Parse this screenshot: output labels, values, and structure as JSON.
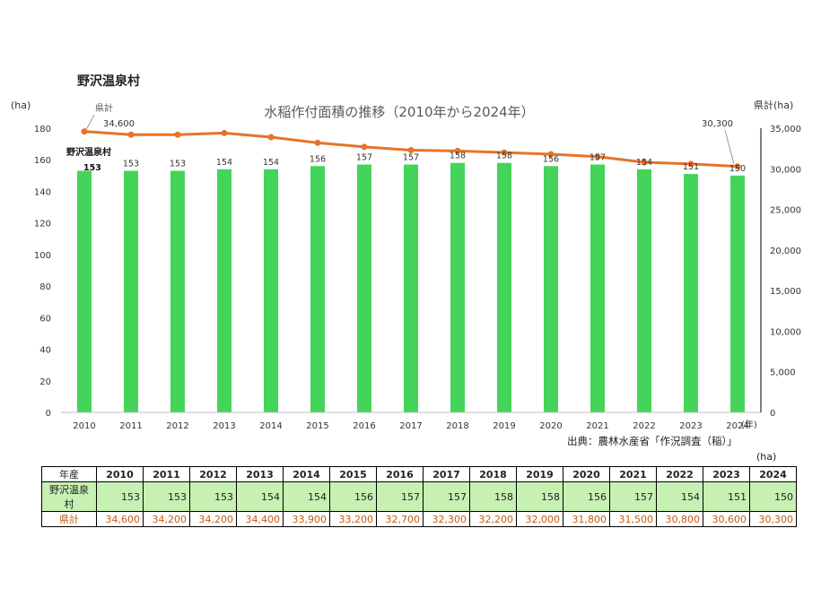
{
  "village_title": "野沢温泉村",
  "chart_data": {
    "type": "bar+line",
    "title": "水稲作付面積の推移（2010年から2024年）",
    "left_axis_unit": "(ha)",
    "right_axis_unit": "県計(ha)",
    "x_unit": "(年)",
    "categories": [
      "2010",
      "2011",
      "2012",
      "2013",
      "2014",
      "2015",
      "2016",
      "2017",
      "2018",
      "2019",
      "2020",
      "2021",
      "2022",
      "2023",
      "2024"
    ],
    "left_ylim": [
      0,
      180
    ],
    "left_ticks": [
      "0",
      "20",
      "40",
      "60",
      "80",
      "100",
      "120",
      "140",
      "160",
      "180"
    ],
    "right_ylim": [
      0,
      35000
    ],
    "right_ticks": [
      "0",
      "5,000",
      "10,000",
      "15,000",
      "20,000",
      "25,000",
      "30,000",
      "35,000"
    ],
    "series": [
      {
        "name": "野沢温泉村",
        "type": "bar",
        "axis": "left",
        "color": "#44d45a",
        "values": [
          153,
          153,
          153,
          154,
          154,
          156,
          157,
          157,
          158,
          158,
          156,
          157,
          154,
          151,
          150
        ]
      },
      {
        "name": "県計",
        "type": "line",
        "axis": "right",
        "color": "#e7732a",
        "values": [
          34600,
          34200,
          34200,
          34400,
          33900,
          33200,
          32700,
          32300,
          32200,
          32000,
          31800,
          31500,
          30800,
          30600,
          30300
        ]
      }
    ],
    "annotations": {
      "line_label": "県計",
      "line_first_value": "34,600",
      "line_last_value": "30,300",
      "bar_label": "野沢温泉村",
      "bar_first_value": "153"
    }
  },
  "source_note": "出典：農林水産省「作況調査（稲）」",
  "table": {
    "unit": "(ha)",
    "header_label": "年産",
    "years": [
      "2010",
      "2011",
      "2012",
      "2013",
      "2014",
      "2015",
      "2016",
      "2017",
      "2018",
      "2019",
      "2020",
      "2021",
      "2022",
      "2023",
      "2024"
    ],
    "village_label": "野沢温泉村",
    "village_values": [
      "153",
      "153",
      "153",
      "154",
      "154",
      "156",
      "157",
      "157",
      "158",
      "158",
      "156",
      "157",
      "154",
      "151",
      "150"
    ],
    "prefecture_label": "県計",
    "prefecture_values": [
      "34,600",
      "34,200",
      "34,200",
      "34,400",
      "33,900",
      "33,200",
      "32,700",
      "32,300",
      "32,200",
      "32,000",
      "31,800",
      "31,500",
      "30,800",
      "30,600",
      "30,300"
    ]
  }
}
